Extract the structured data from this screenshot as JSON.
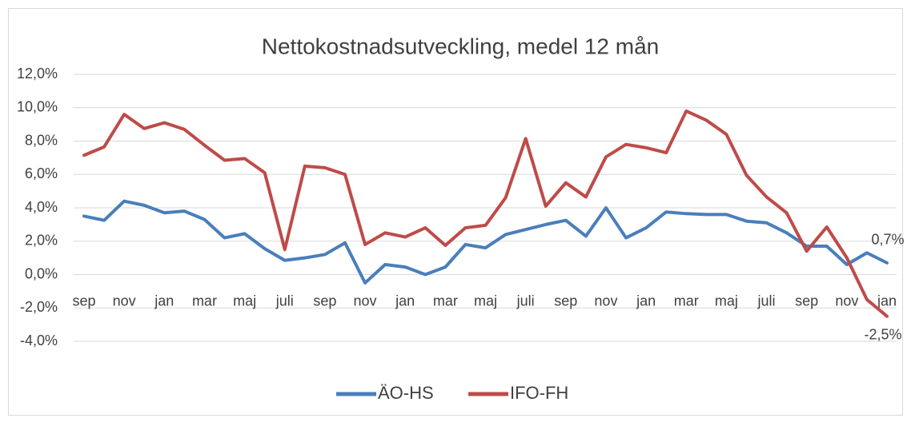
{
  "chart_data": {
    "type": "line",
    "title": "Nettokostnadsutveckling, medel 12 mån",
    "categories": [
      "sep",
      null,
      "nov",
      null,
      "jan",
      null,
      "mar",
      null,
      "maj",
      null,
      "juli",
      null,
      "sep",
      null,
      "nov",
      null,
      "jan",
      null,
      "mar",
      null,
      "maj",
      null,
      "juli",
      null,
      "sep",
      null,
      "nov",
      null,
      "jan",
      null,
      "mar",
      null,
      "maj",
      null,
      "juli",
      null,
      "sep",
      null,
      "nov",
      null,
      "jan"
    ],
    "series": [
      {
        "name": "ÄO-HS",
        "color": "#4a7ebb",
        "values": [
          3.5,
          3.25,
          4.4,
          4.15,
          3.7,
          3.8,
          3.3,
          2.2,
          2.45,
          1.55,
          0.85,
          1.0,
          1.2,
          1.9,
          -0.5,
          0.6,
          0.45,
          0.0,
          0.45,
          1.8,
          1.6,
          2.4,
          2.7,
          3.0,
          3.25,
          2.3,
          4.0,
          2.2,
          2.8,
          3.75,
          3.65,
          3.6,
          3.6,
          3.2,
          3.1,
          2.5,
          1.7,
          1.7,
          0.6,
          1.3,
          0.7
        ],
        "value_labels": {
          "40": "0,7%"
        }
      },
      {
        "name": "IFO-FH",
        "color": "#be4b48",
        "values": [
          7.15,
          7.65,
          9.6,
          8.75,
          9.1,
          8.7,
          7.75,
          6.85,
          6.95,
          6.1,
          1.5,
          6.5,
          6.4,
          6.0,
          1.8,
          2.5,
          2.25,
          2.8,
          1.75,
          2.8,
          2.95,
          4.6,
          8.15,
          4.1,
          5.5,
          4.65,
          7.05,
          7.8,
          7.6,
          7.3,
          9.8,
          9.25,
          8.4,
          5.95,
          4.65,
          3.7,
          1.4,
          2.85,
          1.0,
          -1.5,
          -2.5
        ],
        "value_labels": {
          "40": "-2,5%"
        }
      }
    ],
    "ylim": [
      -4,
      12
    ],
    "yticks": [
      {
        "value": -4,
        "label": "-4,0%"
      },
      {
        "value": -2,
        "label": "-2,0%"
      },
      {
        "value": 0,
        "label": "0,0%"
      },
      {
        "value": 2,
        "label": "2,0%"
      },
      {
        "value": 4,
        "label": "4,0%"
      },
      {
        "value": 6,
        "label": "6,0%"
      },
      {
        "value": 8,
        "label": "8,0%"
      },
      {
        "value": 10,
        "label": "10,0%"
      },
      {
        "value": 12,
        "label": "12,0%"
      }
    ],
    "grid": true,
    "legend": "bottom"
  }
}
